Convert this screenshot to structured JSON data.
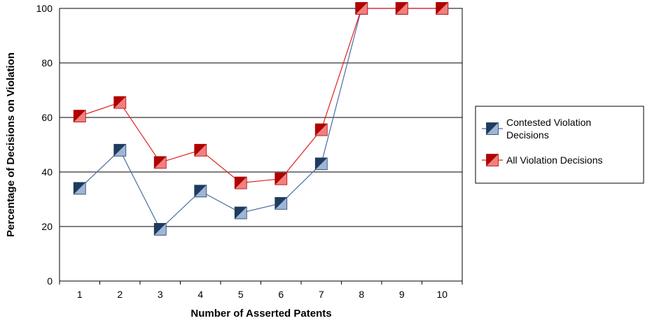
{
  "chart_data": {
    "type": "line",
    "title": "",
    "xlabel": "Number of Asserted Patents",
    "ylabel": "Percentage of Decisions on Violation",
    "x": [
      1,
      2,
      3,
      4,
      5,
      6,
      7,
      8,
      9,
      10
    ],
    "ylim": [
      0,
      100
    ],
    "yticks": [
      0,
      20,
      40,
      60,
      80,
      100
    ],
    "grid": true,
    "legend_position": "right",
    "series": [
      {
        "name": "Contested Violation Decisions",
        "legend_lines": [
          "Contested Violation",
          "Decisions"
        ],
        "values": [
          34,
          48,
          19,
          33,
          25,
          28.5,
          43,
          100,
          100,
          100
        ],
        "line_color": "#4a6e9e",
        "marker_dark": "#1f3b5e",
        "marker_light": "#9db5d6"
      },
      {
        "name": "All Violation Decisions",
        "legend_lines": [
          "All Violation Decisions"
        ],
        "values": [
          60.5,
          65.5,
          43.5,
          48,
          36,
          37.5,
          55.5,
          100,
          100,
          100
        ],
        "line_color": "#e02020",
        "marker_dark": "#b00000",
        "marker_light": "#f08080"
      }
    ]
  }
}
